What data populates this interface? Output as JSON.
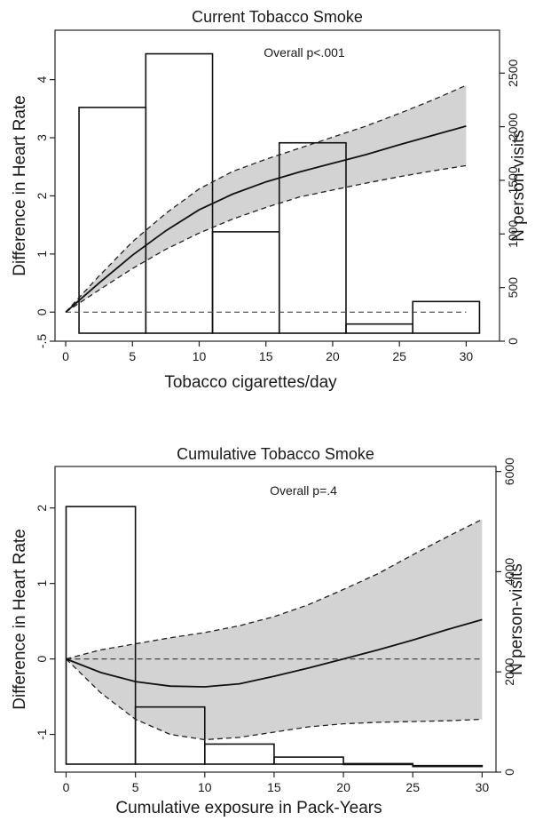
{
  "chart_data": [
    {
      "type": "line",
      "title": "Current Tobacco Smoke",
      "xlabel": "Tobacco cigarettes/day",
      "ylabel": "Difference in Heart Rate",
      "y2label": "N person-visits",
      "annotation": "Overall p<.001",
      "xlim": [
        -0.8,
        32.5
      ],
      "ylim": [
        -0.5,
        4.85
      ],
      "y2lim": [
        0,
        2900
      ],
      "xticks": [
        0,
        5,
        10,
        15,
        20,
        25,
        30
      ],
      "xtick_labels": [
        "0",
        "5",
        "10",
        "15",
        "20",
        "25",
        "30"
      ],
      "yticks": [
        -0.5,
        0,
        1,
        2,
        3,
        4
      ],
      "ytick_labels": [
        "-.5",
        "0",
        "1",
        "2",
        "3",
        "4"
      ],
      "y2ticks": [
        0,
        500,
        1000,
        1500,
        2000,
        2500
      ],
      "y2tick_labels": [
        "0",
        "500",
        "1000",
        "1500",
        "2000",
        "2500"
      ],
      "reference_line": 0,
      "histogram": {
        "axis": "right",
        "bins": [
          {
            "from": 1,
            "to": 6,
            "count": 2180
          },
          {
            "from": 6,
            "to": 11,
            "count": 2680
          },
          {
            "from": 11,
            "to": 16,
            "count": 1020
          },
          {
            "from": 16,
            "to": 21,
            "count": 1850
          },
          {
            "from": 21,
            "to": 26,
            "count": 160
          },
          {
            "from": 26,
            "to": 31,
            "count": 370
          }
        ]
      },
      "series": [
        {
          "role": "estimate",
          "style": "solid",
          "x": [
            0,
            2.5,
            5,
            7.5,
            10,
            12.5,
            15,
            17.5,
            20,
            22.5,
            25,
            27.5,
            30
          ],
          "y": [
            0,
            0.5,
            0.98,
            1.4,
            1.76,
            2.03,
            2.24,
            2.41,
            2.56,
            2.71,
            2.88,
            3.04,
            3.2
          ]
        },
        {
          "role": "upper CI",
          "style": "dashed",
          "x": [
            0,
            2.5,
            5,
            7.5,
            10,
            12.5,
            15,
            17.5,
            20,
            22.5,
            25,
            27.5,
            30
          ],
          "y": [
            0,
            0.62,
            1.21,
            1.7,
            2.12,
            2.42,
            2.63,
            2.82,
            3.01,
            3.2,
            3.42,
            3.65,
            3.9
          ]
        },
        {
          "role": "lower CI",
          "style": "dashed",
          "x": [
            0,
            2.5,
            5,
            7.5,
            10,
            12.5,
            15,
            17.5,
            20,
            22.5,
            25,
            27.5,
            30
          ],
          "y": [
            0,
            0.38,
            0.75,
            1.08,
            1.36,
            1.6,
            1.8,
            1.98,
            2.1,
            2.22,
            2.33,
            2.43,
            2.52
          ]
        }
      ],
      "band_color": "#d3d3d3"
    },
    {
      "type": "line",
      "title": "Cumulative Tobacco Smoke",
      "xlabel": "Cumulative exposure in Pack-Years",
      "ylabel": "Difference in Heart Rate",
      "y2label": "N person-visits",
      "annotation": "Overall p=.4",
      "xlim": [
        -0.8,
        31
      ],
      "ylim": [
        -1.5,
        2.55
      ],
      "y2lim": [
        0,
        6100
      ],
      "xticks": [
        0,
        5,
        10,
        15,
        20,
        25,
        30
      ],
      "xtick_labels": [
        "0",
        "5",
        "10",
        "15",
        "20",
        "25",
        "30"
      ],
      "yticks": [
        -1,
        0,
        1,
        2
      ],
      "ytick_labels": [
        "-1",
        "0",
        "1",
        "2"
      ],
      "y2ticks": [
        0,
        2000,
        4000,
        6000
      ],
      "y2tick_labels": [
        "0",
        "2000",
        "4000",
        "6000"
      ],
      "reference_line": 0,
      "histogram": {
        "axis": "right",
        "bins": [
          {
            "from": 0,
            "to": 5,
            "count": 5300
          },
          {
            "from": 5,
            "to": 10,
            "count": 1300
          },
          {
            "from": 10,
            "to": 15,
            "count": 560
          },
          {
            "from": 15,
            "to": 20,
            "count": 300
          },
          {
            "from": 20,
            "to": 25,
            "count": 170
          },
          {
            "from": 25,
            "to": 30,
            "count": 130
          }
        ]
      },
      "series": [
        {
          "role": "estimate",
          "style": "solid",
          "x": [
            0,
            2.5,
            5,
            7.5,
            10,
            12.5,
            15,
            17.5,
            20,
            22.5,
            25,
            27.5,
            30
          ],
          "y": [
            0,
            -0.18,
            -0.3,
            -0.36,
            -0.37,
            -0.33,
            -0.23,
            -0.12,
            0.0,
            0.12,
            0.25,
            0.39,
            0.52
          ]
        },
        {
          "role": "upper CI",
          "style": "dashed",
          "x": [
            0,
            2.5,
            5,
            7.5,
            10,
            12.5,
            15,
            17.5,
            20,
            22.5,
            25,
            27.5,
            30
          ],
          "y": [
            0,
            0.12,
            0.2,
            0.28,
            0.35,
            0.44,
            0.56,
            0.72,
            0.92,
            1.13,
            1.38,
            1.62,
            1.85
          ]
        },
        {
          "role": "lower CI",
          "style": "dashed",
          "x": [
            0,
            2.5,
            5,
            7.5,
            10,
            12.5,
            15,
            17.5,
            20,
            22.5,
            25,
            27.5,
            30
          ],
          "y": [
            0,
            -0.45,
            -0.8,
            -1.0,
            -1.07,
            -1.04,
            -0.97,
            -0.9,
            -0.86,
            -0.84,
            -0.83,
            -0.82,
            -0.8
          ]
        }
      ],
      "band_color": "#d3d3d3"
    }
  ]
}
